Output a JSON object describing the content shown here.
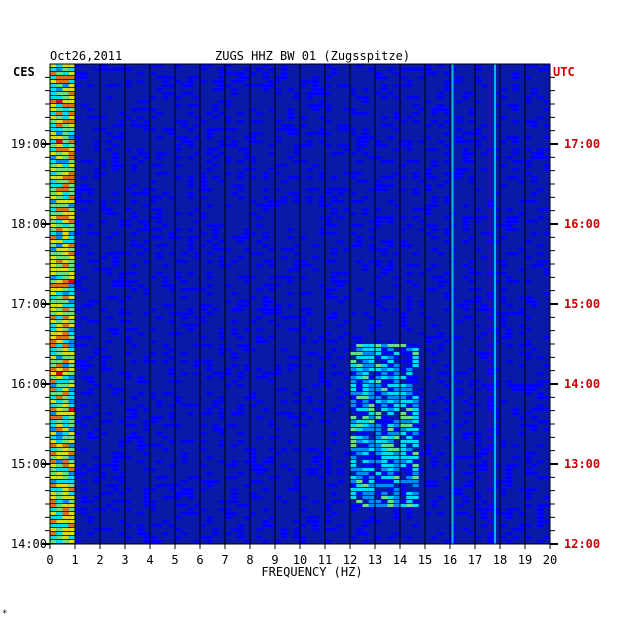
{
  "header": {
    "date": "Oct26,2011",
    "station": "ZUGS HHZ BW 01 (Zugsspitze)"
  },
  "axes": {
    "left_tz": "CES",
    "right_tz": "UTC",
    "xlabel": "FREQUENCY (HZ)"
  },
  "footer_mark": "*",
  "chart_data": {
    "type": "heatmap",
    "title": "ZUGS HHZ BW 01 (Zugsspitze)",
    "xlabel": "FREQUENCY (HZ)",
    "xlim": [
      0,
      20
    ],
    "x_ticks": [
      "0",
      "1",
      "2",
      "3",
      "4",
      "5",
      "6",
      "7",
      "8",
      "9",
      "10",
      "11",
      "12",
      "13",
      "14",
      "15",
      "16",
      "17",
      "18",
      "19",
      "20"
    ],
    "ylim_local": [
      "14:00",
      "20:00"
    ],
    "y_ticks_local": [
      "19:00",
      "18:00",
      "17:00",
      "16:00",
      "15:00",
      "14:00"
    ],
    "y_ticks_utc": [
      "17:00",
      "16:00",
      "15:00",
      "14:00",
      "13:00",
      "12:00"
    ],
    "colormap": [
      "#00008b",
      "#0000ff",
      "#00a0ff",
      "#00ffff",
      "#80ff80",
      "#ffff00",
      "#ff8000",
      "#ff0000"
    ],
    "background_color": "#0a1aa8",
    "features": [
      {
        "name": "low-frequency band",
        "freq_range": [
          0,
          1
        ]
      },
      {
        "name": "persistent line",
        "freq": 16.1
      },
      {
        "name": "persistent line",
        "freq": 17.8
      },
      {
        "name": "tremor band",
        "freq_range": [
          12,
          14.5
        ],
        "time_range": [
          "14:30",
          "16:30"
        ]
      }
    ]
  }
}
